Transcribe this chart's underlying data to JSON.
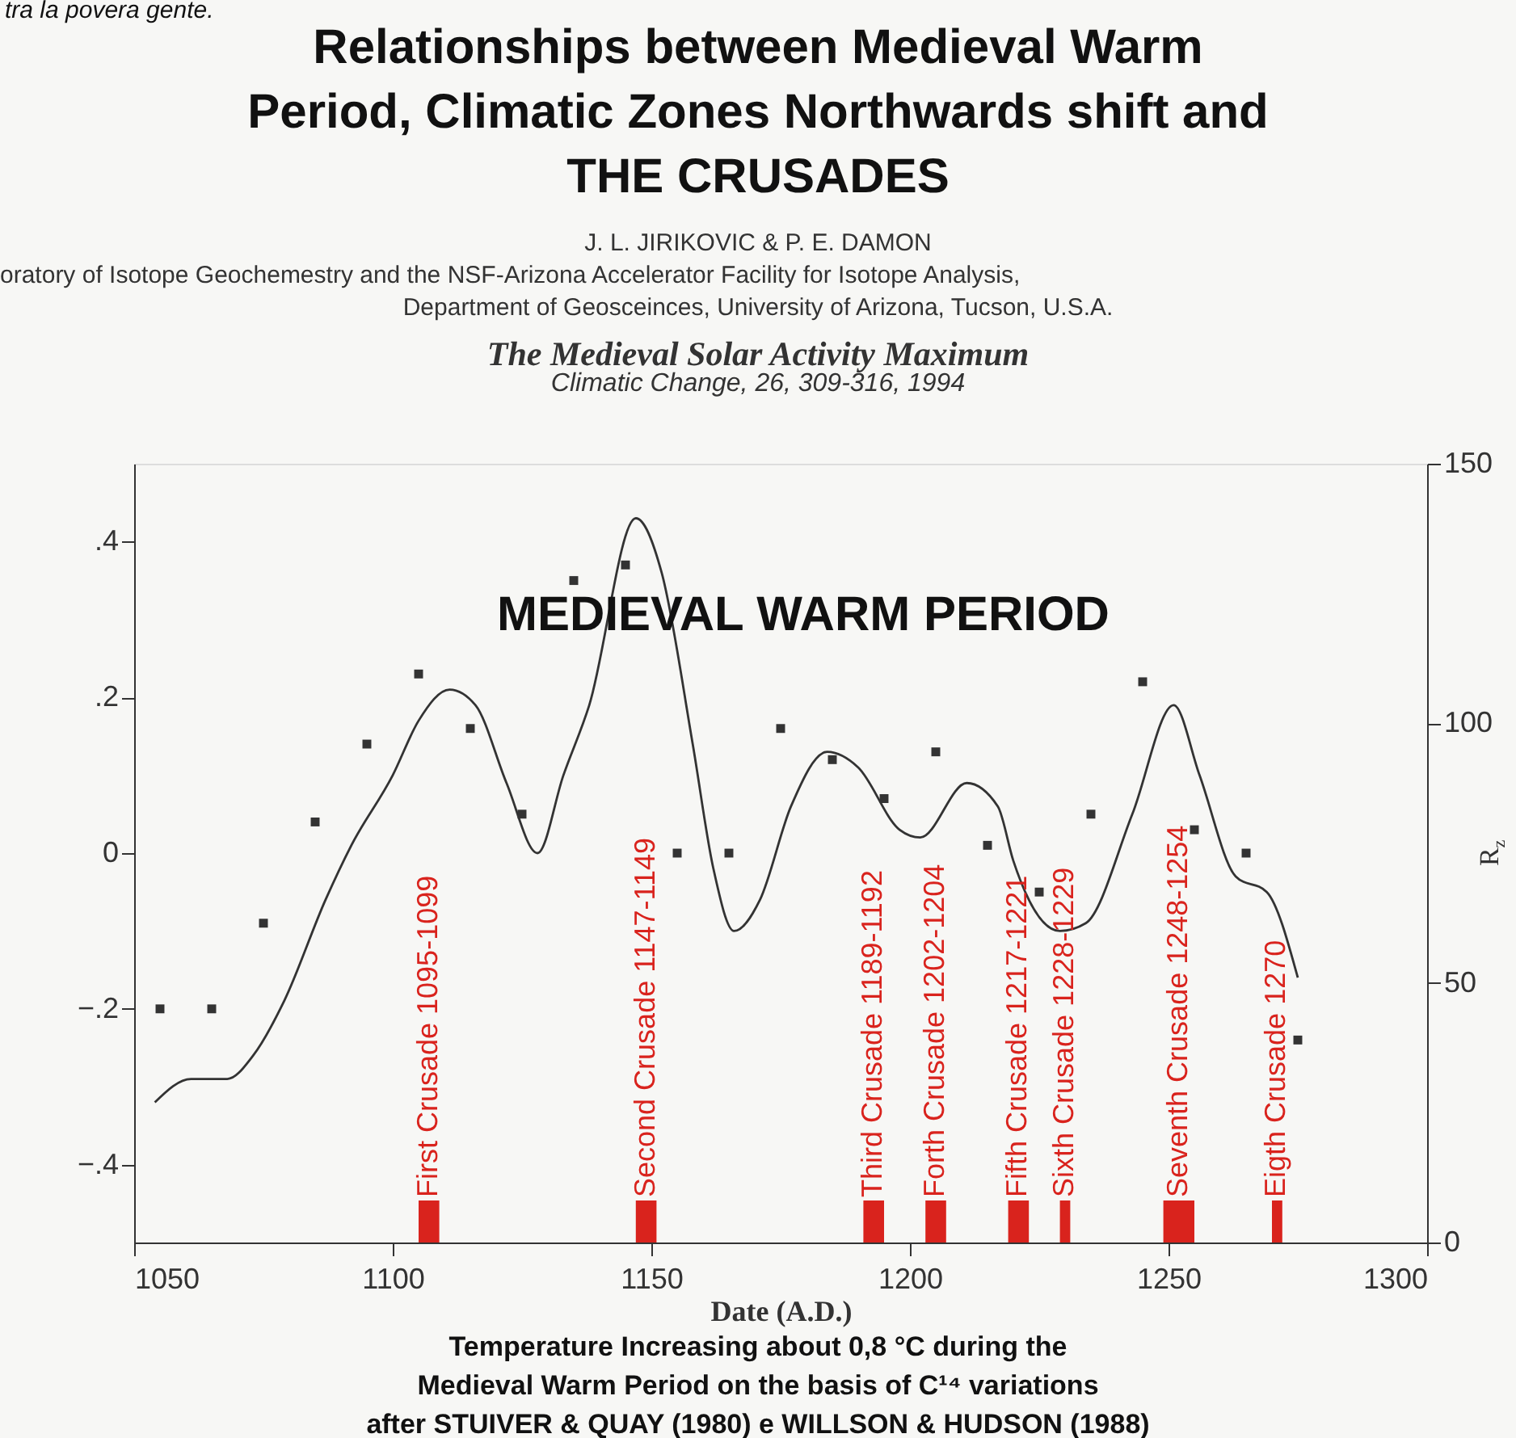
{
  "chart_data": {
    "type": "line",
    "title": "Relationships between Medieval Warm\nPeriod, Climatic Zones Northwards shift and\nTHE CRUSADES",
    "subtitle": "J. L. JIRIKOVIC & P. E. DAMON\noratory of Isotope Geochemestry and the NSF-Arizona Accelerator Facility for Isotope Analysis,\nDepartment of Geosceinces, University of Arizona, Tucson, U.S.A.\nThe Medieval Solar Activity Maximum\nClimatic Change, 26, 309-316, 1994",
    "xlabel": "Date (A.D.)",
    "y2label": "R$_{z}$",
    "annotations": [
      "tra la povera gente.",
      "MEDIEVAL WARM PERIOD",
      "Temperature Increasing about  0,8 °C  during the",
      "Medieval Warm Period on the basis of  C¹⁴  variations",
      "after   STUIVER & QUAY (1980) e WILLSON & HUDSON (1988)"
    ],
    "series": [
      {
        "color": "#333333",
        "line_style": "solid",
        "x": [
          1054,
          1061,
          1068,
          1073,
          1079,
          1087,
          1092,
          1100,
          1105,
          1111,
          1116,
          1122,
          1128,
          1133,
          1138,
          1147,
          1152,
          1158,
          1162,
          1166,
          1171,
          1177,
          1184,
          1190,
          1198,
          1202,
          1211,
          1217,
          1220,
          1229,
          1234,
          1243,
          1251,
          1256,
          1263,
          1269,
          1275
        ],
        "values": [
          -0.32,
          -0.29,
          -0.29,
          -0.26,
          -0.19,
          -0.06,
          0.01,
          0.1,
          0.17,
          0.21,
          0.19,
          0.09,
          0.0,
          0.1,
          0.19,
          0.43,
          0.36,
          0.14,
          -0.02,
          -0.1,
          -0.06,
          0.06,
          0.13,
          0.11,
          0.03,
          0.02,
          0.09,
          0.06,
          -0.01,
          -0.1,
          -0.09,
          0.05,
          0.19,
          0.1,
          -0.03,
          -0.05,
          -0.16
        ]
      },
      {
        "type": "scatter",
        "color": "#333333",
        "marker": "square",
        "x": [
          1055,
          1065,
          1075,
          1085,
          1095,
          1105,
          1115,
          1125,
          1135,
          1145,
          1155,
          1165,
          1175,
          1185,
          1195,
          1205,
          1215,
          1225,
          1235,
          1245,
          1255,
          1265,
          1275
        ],
        "values": [
          -0.2,
          -0.2,
          -0.09,
          0.04,
          0.14,
          0.23,
          0.16,
          0.05,
          0.35,
          0.37,
          0.0,
          0.0,
          0.16,
          0.12,
          0.07,
          0.13,
          0.01,
          -0.05,
          0.05,
          0.22,
          0.03,
          0.0,
          -0.24
        ]
      }
    ],
    "bands": [
      {
        "axis": "x",
        "from": 1105,
        "to": 1109,
        "label": "First Crusade 1095-1099",
        "color": "#d9231d"
      },
      {
        "axis": "x",
        "from": 1147,
        "to": 1151,
        "label": "Second Crusade 1147-1149",
        "color": "#d9231d"
      },
      {
        "axis": "x",
        "from": 1191,
        "to": 1195,
        "label": "Third Crusade 1189-1192",
        "color": "#d9231d"
      },
      {
        "axis": "x",
        "from": 1203,
        "to": 1207,
        "label": "Forth Crusade 1202-1204",
        "color": "#d9231d"
      },
      {
        "axis": "x",
        "from": 1219,
        "to": 1223,
        "label": "Fifth Crusade 1217-1221",
        "color": "#d9231d"
      },
      {
        "axis": "x",
        "from": 1229,
        "to": 1231,
        "label": "Sixth Crusade 1228-1229",
        "color": "#d9231d"
      },
      {
        "axis": "x",
        "from": 1249,
        "to": 1255,
        "label": "Seventh  Crusade 1248-1254",
        "color": "#d9231d"
      },
      {
        "axis": "x",
        "from": 1270,
        "to": 1272,
        "label": "Eigth Crusade 1270",
        "color": "#d9231d"
      }
    ],
    "xlim": [
      1050,
      1300
    ],
    "xticks": [
      1050,
      1100,
      1150,
      1200,
      1250,
      1300
    ],
    "ylim": [
      -0.5,
      0.5
    ],
    "yticks": [
      {
        "value": -0.4,
        "label": "−.4"
      },
      {
        "value": -0.2,
        "label": "−.2"
      },
      0,
      {
        "value": 0.2,
        "label": ".2"
      },
      {
        "value": 0.4,
        "label": ".4"
      }
    ],
    "y2lim": [
      0,
      150
    ],
    "y2ticks": [
      0,
      50,
      100,
      150
    ],
    "grid": false
  }
}
